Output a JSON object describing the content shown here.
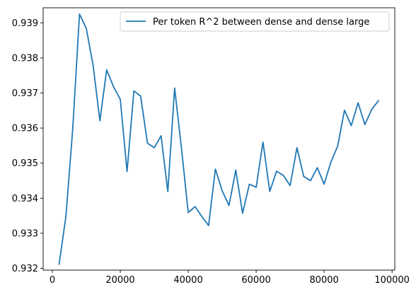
{
  "chart_data": {
    "type": "line",
    "title": "",
    "xlabel": "",
    "ylabel": "",
    "xlim": [
      -2700,
      100800
    ],
    "ylim": [
      0.93195,
      0.93943
    ],
    "grid": false,
    "legend_position": "top-right",
    "xticks": [
      0,
      20000,
      40000,
      60000,
      80000,
      100000
    ],
    "xtick_labels": [
      "0",
      "20000",
      "40000",
      "60000",
      "80000",
      "100000"
    ],
    "yticks": [
      0.932,
      0.933,
      0.934,
      0.935,
      0.936,
      0.937,
      0.938,
      0.939
    ],
    "ytick_labels": [
      "0.932",
      "0.933",
      "0.934",
      "0.935",
      "0.936",
      "0.937",
      "0.938",
      "0.939"
    ],
    "series": [
      {
        "name": "Per token R^2 between dense and dense large",
        "color": "#1f77b4",
        "x": [
          2000,
          4000,
          6000,
          8000,
          10000,
          12000,
          14000,
          16000,
          18000,
          20000,
          22000,
          24000,
          26000,
          28000,
          30000,
          32000,
          34000,
          36000,
          38000,
          40000,
          42000,
          44000,
          46000,
          48000,
          50000,
          52000,
          54000,
          56000,
          58000,
          60000,
          62000,
          64000,
          66000,
          68000,
          70000,
          72000,
          74000,
          76000,
          78000,
          80000,
          82000,
          84000,
          86000,
          88000,
          90000,
          92000,
          94000,
          96000
        ],
        "y": [
          0.93212,
          0.93348,
          0.93597,
          0.93925,
          0.93884,
          0.93779,
          0.93621,
          0.93766,
          0.93718,
          0.93682,
          0.93476,
          0.93706,
          0.93691,
          0.93557,
          0.93544,
          0.93578,
          0.93419,
          0.93714,
          0.93544,
          0.93359,
          0.93376,
          0.93348,
          0.93322,
          0.93483,
          0.93421,
          0.93379,
          0.9348,
          0.93357,
          0.9344,
          0.93431,
          0.9356,
          0.93419,
          0.93477,
          0.93465,
          0.93436,
          0.93544,
          0.93462,
          0.9345,
          0.93487,
          0.9344,
          0.93503,
          0.93549,
          0.93651,
          0.93607,
          0.93672,
          0.9361,
          0.93653,
          0.93678
        ]
      }
    ]
  }
}
